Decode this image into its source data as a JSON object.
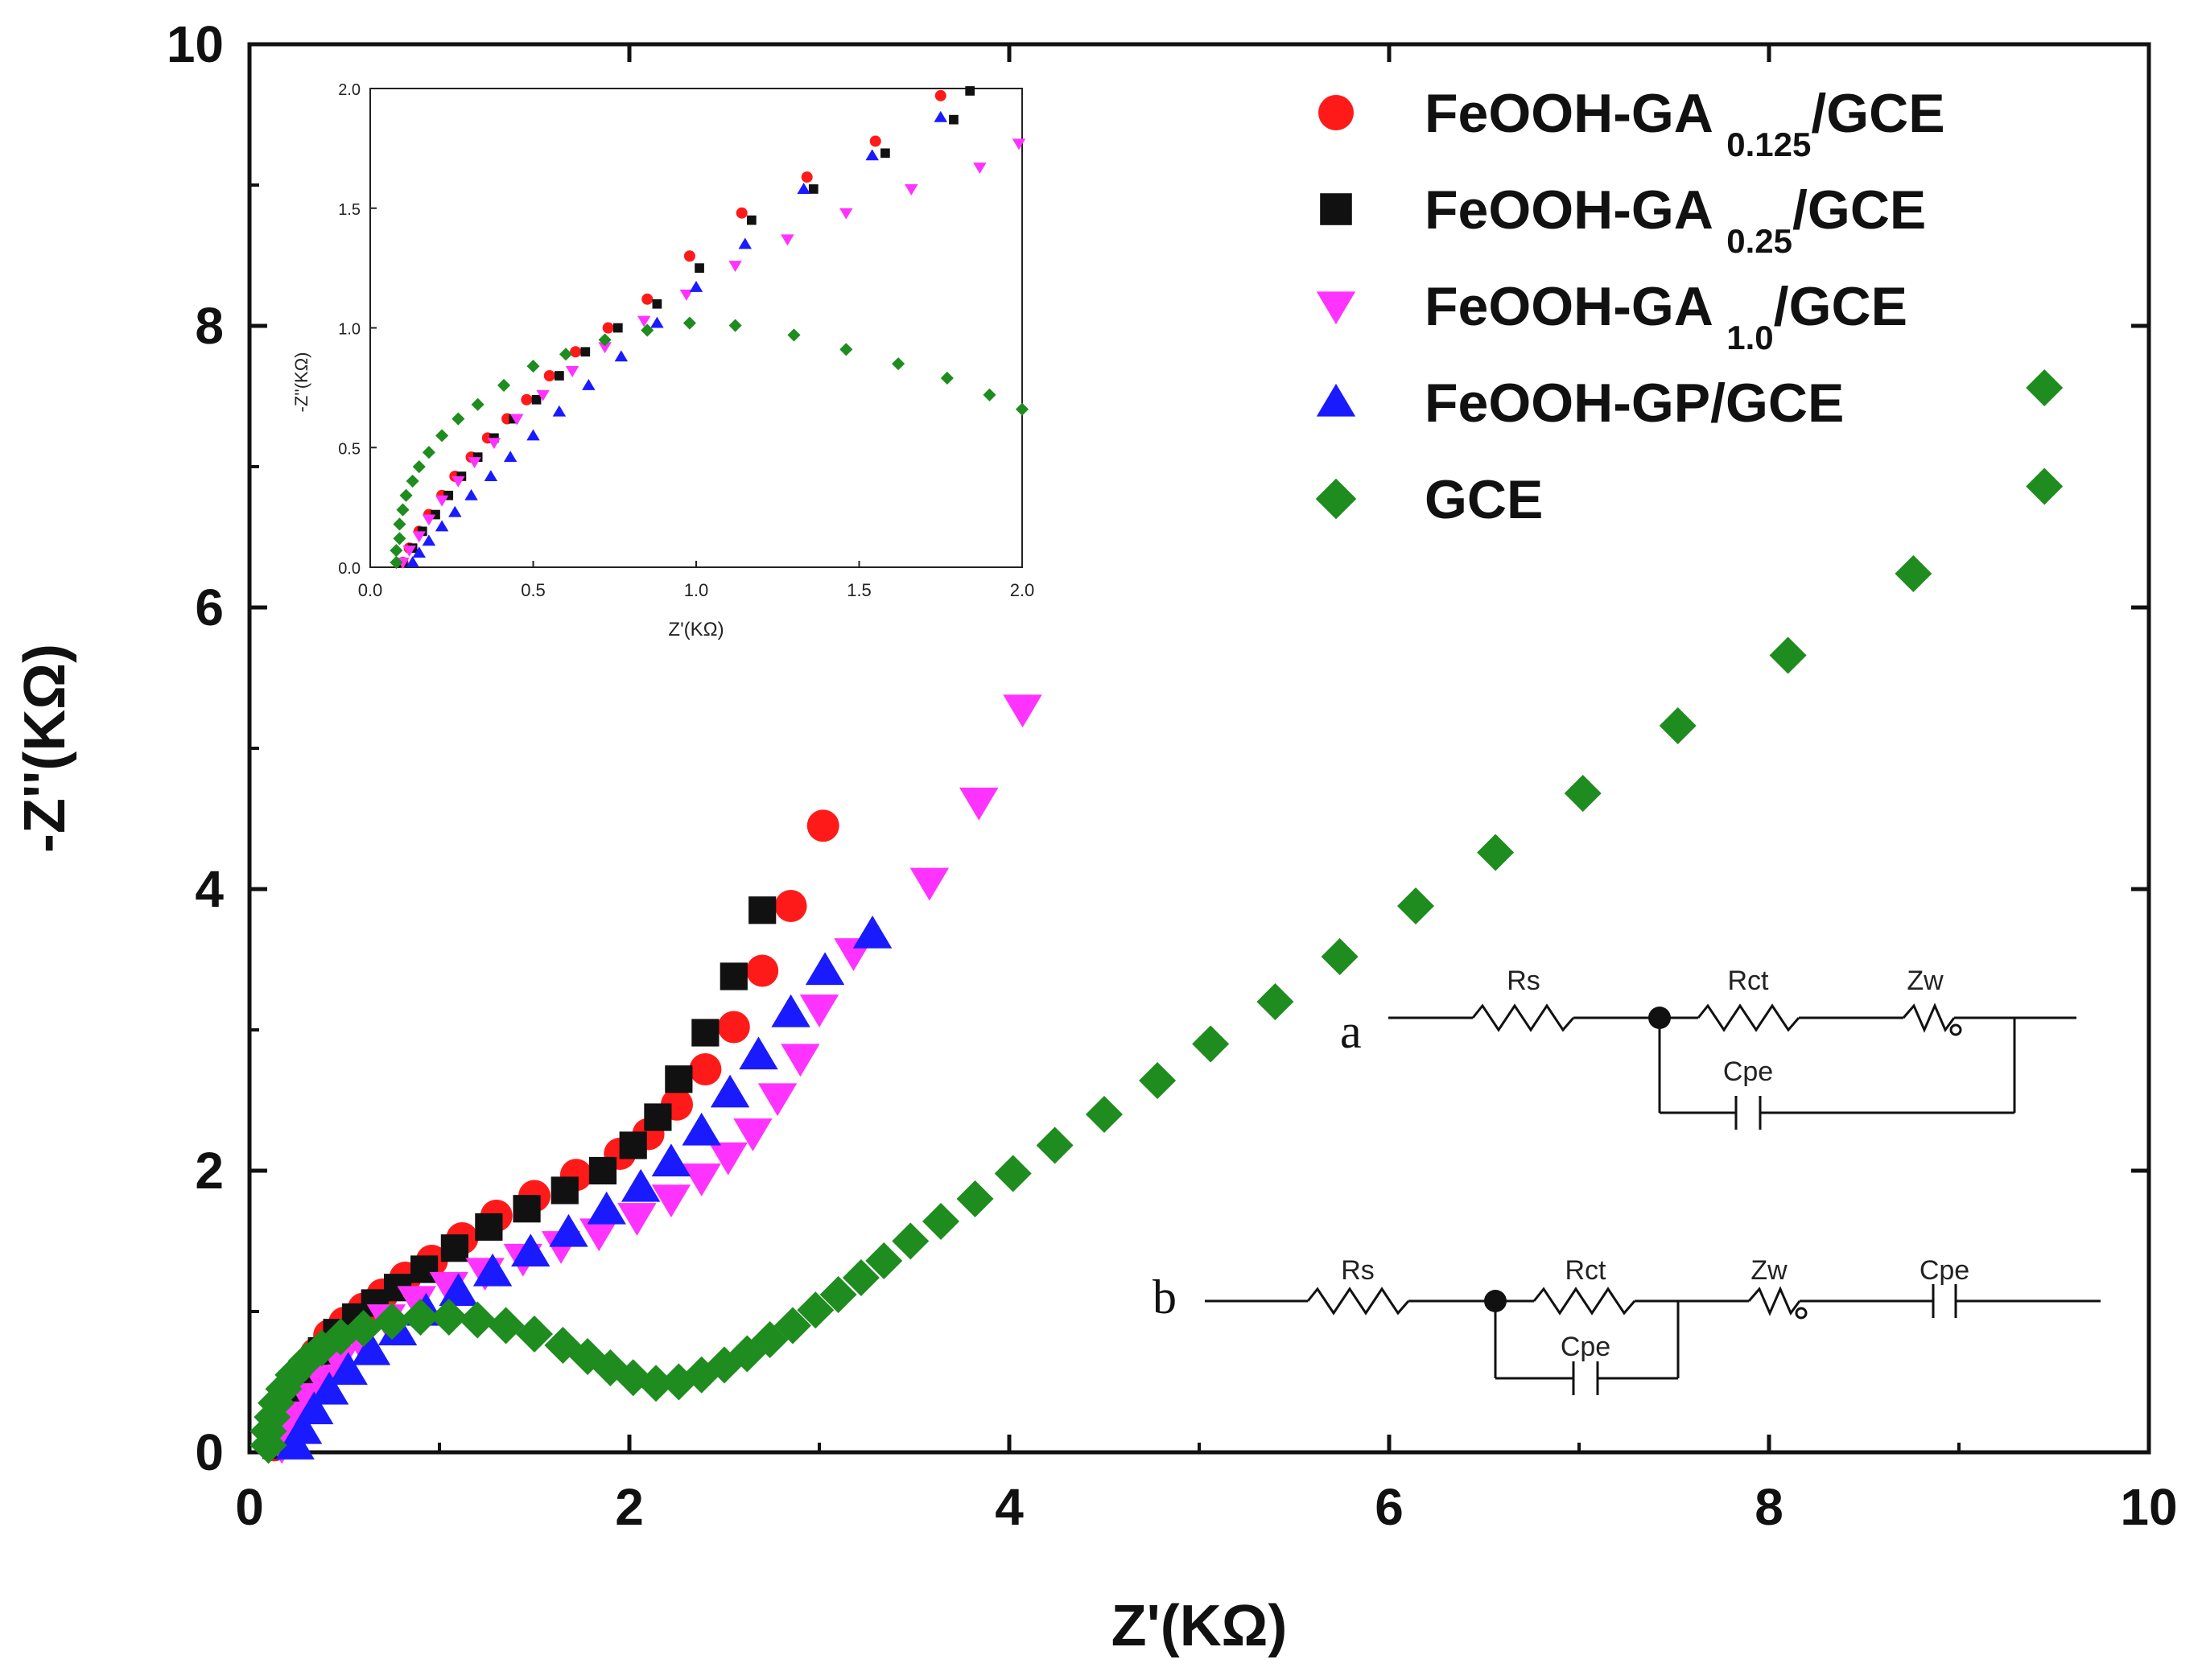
{
  "chart_data": [
    {
      "type": "scatter",
      "name": "main",
      "title": "",
      "xlabel": "Z'(KΩ)",
      "ylabel": "-Z''(KΩ)",
      "xlim": [
        0,
        10
      ],
      "ylim": [
        0,
        10
      ],
      "xticks": [
        "0",
        "2",
        "4",
        "6",
        "8",
        "10"
      ],
      "yticks": [
        "0",
        "2",
        "4",
        "6",
        "8",
        "10"
      ],
      "legend_position": "top-right",
      "series": [
        {
          "name": "FeOOH-GA0.125/GCE",
          "legend": {
            "prefix": "FeOOH-GA",
            "sub": "0.125",
            "suffix": "/GCE"
          },
          "marker": "circle",
          "color": "#ff1a1a",
          "points": [
            [
              0.13,
              0.05
            ],
            [
              0.15,
              0.15
            ],
            [
              0.18,
              0.28
            ],
            [
              0.22,
              0.42
            ],
            [
              0.28,
              0.56
            ],
            [
              0.35,
              0.7
            ],
            [
              0.42,
              0.83
            ],
            [
              0.5,
              0.92
            ],
            [
              0.6,
              1.02
            ],
            [
              0.7,
              1.12
            ],
            [
              0.82,
              1.24
            ],
            [
              0.96,
              1.36
            ],
            [
              1.12,
              1.52
            ],
            [
              1.3,
              1.68
            ],
            [
              1.5,
              1.82
            ],
            [
              1.72,
              1.97
            ],
            [
              1.95,
              2.12
            ],
            [
              2.1,
              2.26
            ],
            [
              2.25,
              2.47
            ],
            [
              2.4,
              2.72
            ],
            [
              2.55,
              3.02
            ],
            [
              2.7,
              3.42
            ],
            [
              2.85,
              3.88
            ],
            [
              3.02,
              4.45
            ]
          ]
        },
        {
          "name": "FeOOH-GA0.25/GCE",
          "legend": {
            "prefix": "FeOOH-GA",
            "sub": "0.25",
            "suffix": "/GCE"
          },
          "marker": "square",
          "color": "#111111",
          "points": [
            [
              0.14,
              0.05
            ],
            [
              0.16,
              0.16
            ],
            [
              0.2,
              0.3
            ],
            [
              0.25,
              0.44
            ],
            [
              0.31,
              0.58
            ],
            [
              0.38,
              0.72
            ],
            [
              0.46,
              0.85
            ],
            [
              0.56,
              0.96
            ],
            [
              0.66,
              1.06
            ],
            [
              0.78,
              1.17
            ],
            [
              0.92,
              1.3
            ],
            [
              1.08,
              1.45
            ],
            [
              1.26,
              1.6
            ],
            [
              1.46,
              1.73
            ],
            [
              1.66,
              1.86
            ],
            [
              1.86,
              2.0
            ],
            [
              2.02,
              2.18
            ],
            [
              2.15,
              2.38
            ],
            [
              2.26,
              2.65
            ],
            [
              2.4,
              2.98
            ],
            [
              2.55,
              3.38
            ],
            [
              2.7,
              3.85
            ]
          ]
        },
        {
          "name": "FeOOH-GA1.0/GCE",
          "legend": {
            "prefix": "FeOOH-GA",
            "sub": "1.0",
            "suffix": "/GCE"
          },
          "marker": "triangle-down",
          "color": "#ff33ff",
          "points": [
            [
              0.17,
              0.05
            ],
            [
              0.2,
              0.14
            ],
            [
              0.25,
              0.26
            ],
            [
              0.31,
              0.39
            ],
            [
              0.38,
              0.52
            ],
            [
              0.47,
              0.66
            ],
            [
              0.58,
              0.8
            ],
            [
              0.72,
              0.95
            ],
            [
              0.88,
              1.08
            ],
            [
              1.05,
              1.18
            ],
            [
              1.24,
              1.28
            ],
            [
              1.44,
              1.38
            ],
            [
              1.64,
              1.47
            ],
            [
              1.84,
              1.56
            ],
            [
              2.04,
              1.67
            ],
            [
              2.22,
              1.8
            ],
            [
              2.38,
              1.95
            ],
            [
              2.52,
              2.1
            ],
            [
              2.65,
              2.27
            ],
            [
              2.78,
              2.52
            ],
            [
              2.9,
              2.8
            ],
            [
              3.0,
              3.15
            ],
            [
              3.18,
              3.55
            ],
            [
              3.58,
              4.05
            ],
            [
              3.84,
              4.62
            ],
            [
              4.07,
              5.28
            ]
          ]
        },
        {
          "name": "FeOOH-GP/GCE",
          "legend": {
            "prefix": "FeOOH-GP/GCE",
            "sub": "",
            "suffix": ""
          },
          "marker": "triangle-up",
          "color": "#1a1aff",
          "points": [
            [
              0.24,
              0.05
            ],
            [
              0.28,
              0.16
            ],
            [
              0.34,
              0.3
            ],
            [
              0.42,
              0.44
            ],
            [
              0.52,
              0.58
            ],
            [
              0.64,
              0.72
            ],
            [
              0.78,
              0.86
            ],
            [
              0.93,
              1.0
            ],
            [
              1.1,
              1.14
            ],
            [
              1.28,
              1.28
            ],
            [
              1.48,
              1.42
            ],
            [
              1.68,
              1.56
            ],
            [
              1.88,
              1.72
            ],
            [
              2.06,
              1.88
            ],
            [
              2.22,
              2.06
            ],
            [
              2.38,
              2.28
            ],
            [
              2.53,
              2.55
            ],
            [
              2.68,
              2.82
            ],
            [
              2.85,
              3.12
            ],
            [
              3.03,
              3.42
            ],
            [
              3.28,
              3.68
            ]
          ]
        },
        {
          "name": "GCE",
          "legend": {
            "prefix": "GCE",
            "sub": "",
            "suffix": ""
          },
          "marker": "diamond",
          "color": "#1f8c1f",
          "points": [
            [
              0.1,
              0.05
            ],
            [
              0.1,
              0.15
            ],
            [
              0.12,
              0.25
            ],
            [
              0.14,
              0.35
            ],
            [
              0.18,
              0.45
            ],
            [
              0.23,
              0.55
            ],
            [
              0.3,
              0.65
            ],
            [
              0.38,
              0.74
            ],
            [
              0.48,
              0.82
            ],
            [
              0.6,
              0.88
            ],
            [
              0.75,
              0.93
            ],
            [
              0.9,
              0.96
            ],
            [
              1.05,
              0.96
            ],
            [
              1.2,
              0.94
            ],
            [
              1.35,
              0.9
            ],
            [
              1.5,
              0.84
            ],
            [
              1.65,
              0.76
            ],
            [
              1.78,
              0.68
            ],
            [
              1.9,
              0.6
            ],
            [
              2.02,
              0.53
            ],
            [
              2.14,
              0.49
            ],
            [
              2.26,
              0.5
            ],
            [
              2.38,
              0.55
            ],
            [
              2.5,
              0.62
            ],
            [
              2.62,
              0.7
            ],
            [
              2.74,
              0.8
            ],
            [
              2.86,
              0.9
            ],
            [
              2.98,
              1.01
            ],
            [
              3.1,
              1.12
            ],
            [
              3.22,
              1.24
            ],
            [
              3.34,
              1.36
            ],
            [
              3.48,
              1.5
            ],
            [
              3.64,
              1.64
            ],
            [
              3.82,
              1.8
            ],
            [
              4.02,
              1.98
            ],
            [
              4.24,
              2.18
            ],
            [
              4.5,
              2.4
            ],
            [
              4.78,
              2.64
            ],
            [
              5.06,
              2.9
            ],
            [
              5.4,
              3.2
            ],
            [
              5.74,
              3.52
            ],
            [
              6.14,
              3.88
            ],
            [
              6.56,
              4.26
            ],
            [
              7.02,
              4.68
            ],
            [
              7.52,
              5.16
            ],
            [
              8.1,
              5.66
            ],
            [
              8.76,
              6.24
            ],
            [
              9.45,
              6.86
            ],
            [
              9.45,
              7.56
            ]
          ]
        }
      ]
    },
    {
      "type": "scatter",
      "name": "inset",
      "title": "",
      "xlabel": "Z'(KΩ)",
      "ylabel": "-Z''(KΩ)",
      "xlim": [
        0,
        2
      ],
      "ylim": [
        0,
        2
      ],
      "xticks": [
        "0.0",
        "0.5",
        "1.0",
        "1.5",
        "2.0"
      ],
      "yticks": [
        "0.0",
        "0.5",
        "1.0",
        "1.5",
        "2.0"
      ],
      "series": [
        {
          "name": "FeOOH-GA0.125/GCE",
          "marker": "circle",
          "color": "#ff1a1a",
          "points": [
            [
              0.1,
              0.02
            ],
            [
              0.12,
              0.08
            ],
            [
              0.15,
              0.15
            ],
            [
              0.18,
              0.22
            ],
            [
              0.22,
              0.3
            ],
            [
              0.26,
              0.38
            ],
            [
              0.31,
              0.46
            ],
            [
              0.36,
              0.54
            ],
            [
              0.42,
              0.62
            ],
            [
              0.48,
              0.7
            ],
            [
              0.55,
              0.8
            ],
            [
              0.63,
              0.9
            ],
            [
              0.73,
              1.0
            ],
            [
              0.85,
              1.12
            ],
            [
              0.98,
              1.3
            ],
            [
              1.14,
              1.48
            ],
            [
              1.34,
              1.63
            ],
            [
              1.55,
              1.78
            ],
            [
              1.75,
              1.97
            ]
          ]
        },
        {
          "name": "FeOOH-GA0.25/GCE",
          "marker": "square",
          "color": "#111111",
          "points": [
            [
              0.1,
              0.02
            ],
            [
              0.13,
              0.08
            ],
            [
              0.16,
              0.15
            ],
            [
              0.2,
              0.22
            ],
            [
              0.24,
              0.3
            ],
            [
              0.28,
              0.38
            ],
            [
              0.33,
              0.46
            ],
            [
              0.38,
              0.54
            ],
            [
              0.44,
              0.62
            ],
            [
              0.51,
              0.7
            ],
            [
              0.58,
              0.8
            ],
            [
              0.66,
              0.9
            ],
            [
              0.76,
              1.0
            ],
            [
              0.88,
              1.1
            ],
            [
              1.01,
              1.25
            ],
            [
              1.17,
              1.45
            ],
            [
              1.36,
              1.58
            ],
            [
              1.58,
              1.73
            ],
            [
              1.79,
              1.87
            ],
            [
              1.84,
              1.99
            ]
          ]
        },
        {
          "name": "FeOOH-GA1.0/GCE",
          "marker": "triangle-down",
          "color": "#ff33ff",
          "points": [
            [
              0.1,
              0.02
            ],
            [
              0.12,
              0.07
            ],
            [
              0.15,
              0.13
            ],
            [
              0.18,
              0.2
            ],
            [
              0.22,
              0.28
            ],
            [
              0.27,
              0.36
            ],
            [
              0.32,
              0.44
            ],
            [
              0.38,
              0.52
            ],
            [
              0.45,
              0.62
            ],
            [
              0.53,
              0.72
            ],
            [
              0.62,
              0.82
            ],
            [
              0.72,
              0.92
            ],
            [
              0.84,
              1.03
            ],
            [
              0.97,
              1.14
            ],
            [
              1.12,
              1.26
            ],
            [
              1.28,
              1.37
            ],
            [
              1.46,
              1.48
            ],
            [
              1.66,
              1.58
            ],
            [
              1.87,
              1.67
            ],
            [
              1.99,
              1.77
            ]
          ]
        },
        {
          "name": "FeOOH-GP/GCE",
          "marker": "triangle-up",
          "color": "#1a1aff",
          "points": [
            [
              0.13,
              0.02
            ],
            [
              0.15,
              0.06
            ],
            [
              0.18,
              0.11
            ],
            [
              0.22,
              0.17
            ],
            [
              0.26,
              0.23
            ],
            [
              0.31,
              0.3
            ],
            [
              0.37,
              0.38
            ],
            [
              0.43,
              0.46
            ],
            [
              0.5,
              0.55
            ],
            [
              0.58,
              0.65
            ],
            [
              0.67,
              0.76
            ],
            [
              0.77,
              0.88
            ],
            [
              0.88,
              1.02
            ],
            [
              1.0,
              1.17
            ],
            [
              1.15,
              1.35
            ],
            [
              1.33,
              1.58
            ],
            [
              1.54,
              1.72
            ],
            [
              1.75,
              1.88
            ]
          ]
        },
        {
          "name": "GCE",
          "marker": "diamond",
          "color": "#1f8c1f",
          "points": [
            [
              0.08,
              0.02
            ],
            [
              0.08,
              0.07
            ],
            [
              0.09,
              0.12
            ],
            [
              0.09,
              0.18
            ],
            [
              0.1,
              0.24
            ],
            [
              0.11,
              0.3
            ],
            [
              0.13,
              0.36
            ],
            [
              0.15,
              0.42
            ],
            [
              0.18,
              0.48
            ],
            [
              0.22,
              0.55
            ],
            [
              0.27,
              0.62
            ],
            [
              0.33,
              0.68
            ],
            [
              0.41,
              0.76
            ],
            [
              0.5,
              0.84
            ],
            [
              0.6,
              0.89
            ],
            [
              0.72,
              0.95
            ],
            [
              0.85,
              0.99
            ],
            [
              0.98,
              1.02
            ],
            [
              1.12,
              1.01
            ],
            [
              1.3,
              0.97
            ],
            [
              1.46,
              0.91
            ],
            [
              1.62,
              0.85
            ],
            [
              1.77,
              0.79
            ],
            [
              1.9,
              0.72
            ],
            [
              2.0,
              0.66
            ]
          ]
        }
      ]
    }
  ],
  "circuits": {
    "a": {
      "letter": "a",
      "rs": "Rs",
      "rct": "Rct",
      "zw": "Zw",
      "cpe": "Cpe"
    },
    "b": {
      "letter": "b",
      "rs": "Rs",
      "rct": "Rct",
      "zw": "Zw",
      "cpe1": "Cpe",
      "cpe2": "Cpe"
    }
  }
}
